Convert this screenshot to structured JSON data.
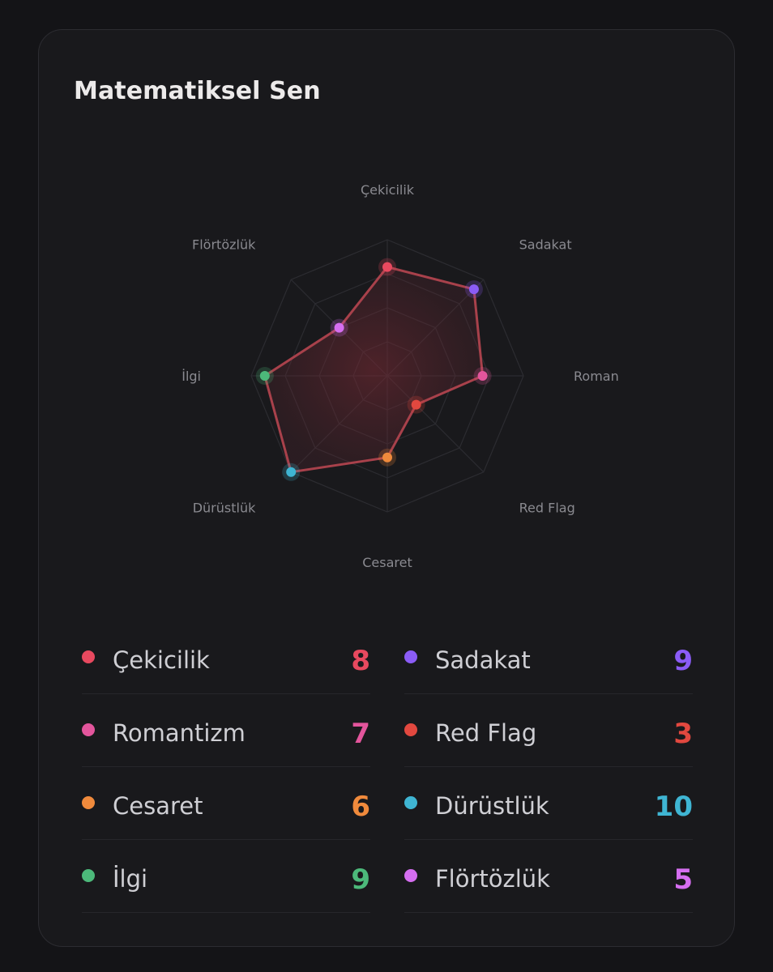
{
  "card": {
    "title": "Matematiksel Sen"
  },
  "colors": {
    "polygon_stroke": "#a8414b",
    "polygon_fill": "#8a2a35",
    "grid": "#2c2c31"
  },
  "chart_data": {
    "type": "radar",
    "title": "Matematiksel Sen",
    "range": [
      0,
      10
    ],
    "grid_rings": 4,
    "axes": [
      {
        "label": "Çekicilik",
        "value": 8,
        "color": "#e8495f"
      },
      {
        "label": "Sadakat",
        "value": 9,
        "color": "#8b5cf6"
      },
      {
        "label": "Romantizm",
        "value": 7,
        "color": "#e3559c"
      },
      {
        "label": "Red Flag",
        "value": 3,
        "color": "#e2483f"
      },
      {
        "label": "Cesaret",
        "value": 6,
        "color": "#f08a3c"
      },
      {
        "label": "Dürüstlük",
        "value": 10,
        "color": "#3fb5d3"
      },
      {
        "label": "İlgi",
        "value": 9,
        "color": "#4cb97a"
      },
      {
        "label": "Flörtözlük",
        "value": 5,
        "color": "#d56ef0"
      }
    ],
    "axis_label_texts": [
      "Çekicilik",
      "Sadakat",
      "Roman",
      "Red Flag",
      "Cesaret",
      "Dürüstlük",
      "İlgi",
      "Flörtözlük"
    ]
  },
  "legend": [
    {
      "label": "Çekicilik",
      "value": "8",
      "color": "#e8495f"
    },
    {
      "label": "Sadakat",
      "value": "9",
      "color": "#8b5cf6"
    },
    {
      "label": "Romantizm",
      "value": "7",
      "color": "#e3559c"
    },
    {
      "label": "Red Flag",
      "value": "3",
      "color": "#e2483f"
    },
    {
      "label": "Cesaret",
      "value": "6",
      "color": "#f08a3c"
    },
    {
      "label": "Dürüstlük",
      "value": "10",
      "color": "#3fb5d3"
    },
    {
      "label": "İlgi",
      "value": "9",
      "color": "#4cb97a"
    },
    {
      "label": "Flörtözlük",
      "value": "5",
      "color": "#d56ef0"
    }
  ]
}
